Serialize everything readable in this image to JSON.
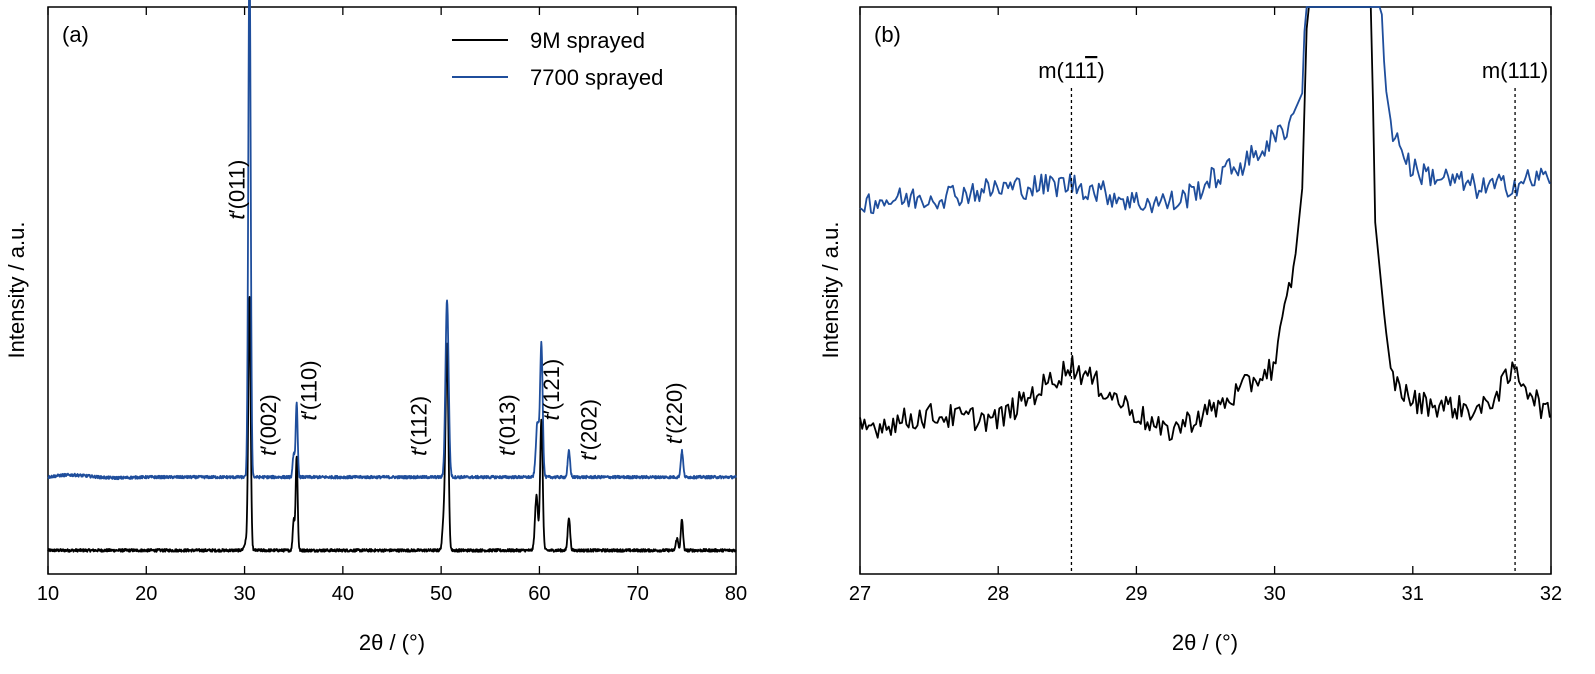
{
  "colors": {
    "series_9M": "#000000",
    "series_7700": "#1f4e9c"
  },
  "chart_data": [
    {
      "type": "line",
      "panel_label": "(a)",
      "xlabel": "2θ / (°)",
      "ylabel": "Intensity / a.u.",
      "xlim": [
        10,
        80
      ],
      "xticks": [
        10,
        20,
        30,
        40,
        50,
        60,
        70,
        80
      ],
      "y_ticks_labeled": false,
      "legend_position": "top-right",
      "series": [
        {
          "name": "9M sprayed",
          "color_key": "series_9M",
          "baseline": 1.0,
          "peaks": [
            [
              30.2,
              0.4,
              0.2
            ],
            [
              30.5,
              10.6,
              0.12
            ],
            [
              35.0,
              1.3,
              0.1
            ],
            [
              35.3,
              4.0,
              0.1
            ],
            [
              50.3,
              1.5,
              0.15
            ],
            [
              50.6,
              8.5,
              0.14
            ],
            [
              59.7,
              2.3,
              0.15
            ],
            [
              60.2,
              5.5,
              0.13
            ],
            [
              63.0,
              1.4,
              0.12
            ],
            [
              74.0,
              0.5,
              0.12
            ],
            [
              74.5,
              1.3,
              0.11
            ]
          ]
        },
        {
          "name": "7700 sprayed",
          "color_key": "series_7700",
          "baseline": 4.1,
          "peaks": [
            [
              30.5,
              22.5,
              0.12
            ],
            [
              35.0,
              1.0,
              0.1
            ],
            [
              35.3,
              3.1,
              0.1
            ],
            [
              50.6,
              7.5,
              0.16
            ],
            [
              59.8,
              2.3,
              0.16
            ],
            [
              60.2,
              5.6,
              0.13
            ],
            [
              63.0,
              1.1,
              0.12
            ],
            [
              74.5,
              1.1,
              0.12
            ]
          ]
        }
      ],
      "annotations": [
        {
          "prefix": "t",
          "text": "(011)",
          "x": 30.0,
          "y": 15.0
        },
        {
          "prefix": "t",
          "text": "(002)",
          "x": 33.2,
          "y": 5.0
        },
        {
          "prefix": "t",
          "text": "(110)",
          "x": 37.3,
          "y": 6.5
        },
        {
          "prefix": "t",
          "text": "(112)",
          "x": 48.5,
          "y": 5.0
        },
        {
          "prefix": "t",
          "text": "(013)",
          "x": 57.5,
          "y": 5.0
        },
        {
          "prefix": "t",
          "text": "(121)",
          "x": 62.0,
          "y": 6.5
        },
        {
          "prefix": "t",
          "text": "(202)",
          "x": 65.8,
          "y": 4.8
        },
        {
          "prefix": "t",
          "text": "(220)",
          "x": 74.5,
          "y": 5.5
        }
      ]
    },
    {
      "type": "line",
      "panel_label": "(b)",
      "xlabel": "2θ / (°)",
      "ylabel": "Intensity / a.u.",
      "xlim": [
        27,
        32
      ],
      "xticks": [
        27,
        28,
        29,
        30,
        31,
        32
      ],
      "y_ticks_labeled": false,
      "reference_lines": [
        {
          "label": "m(11",
          "label_bar": "1",
          "label_tail": ")",
          "x": 28.53
        },
        {
          "label": "m(111)",
          "x": 31.74
        }
      ],
      "series": [
        {
          "name": "9M sprayed",
          "color_key": "series_9M",
          "points": [
            [
              27.0,
              3.2
            ],
            [
              27.5,
              3.5
            ],
            [
              28.0,
              3.4
            ],
            [
              28.53,
              4.6
            ],
            [
              29.2,
              3.1
            ],
            [
              29.6,
              3.7
            ],
            [
              30.0,
              4.6
            ],
            [
              30.15,
              7.0
            ],
            [
              30.2,
              8.5
            ],
            [
              30.25,
              14
            ],
            [
              30.7,
              14
            ],
            [
              30.72,
              8.0
            ],
            [
              30.8,
              5.5
            ],
            [
              30.85,
              4.3
            ],
            [
              31.0,
              3.8
            ],
            [
              31.5,
              3.6
            ],
            [
              31.74,
              4.5
            ],
            [
              32.0,
              3.4
            ]
          ]
        },
        {
          "name": "7700 sprayed",
          "color_key": "series_7700",
          "points": [
            [
              27.0,
              8.2
            ],
            [
              27.5,
              8.3
            ],
            [
              28.0,
              8.5
            ],
            [
              28.53,
              8.6
            ],
            [
              29.0,
              8.2
            ],
            [
              29.3,
              8.2
            ],
            [
              29.6,
              8.8
            ],
            [
              29.8,
              9.1
            ],
            [
              30.0,
              9.6
            ],
            [
              30.1,
              9.9
            ],
            [
              30.2,
              10.6
            ],
            [
              30.24,
              14
            ],
            [
              30.75,
              14
            ],
            [
              30.8,
              10.8
            ],
            [
              30.85,
              9.8
            ],
            [
              31.0,
              8.9
            ],
            [
              31.5,
              8.5
            ],
            [
              31.74,
              8.6
            ],
            [
              32.0,
              8.8
            ]
          ]
        }
      ]
    }
  ]
}
